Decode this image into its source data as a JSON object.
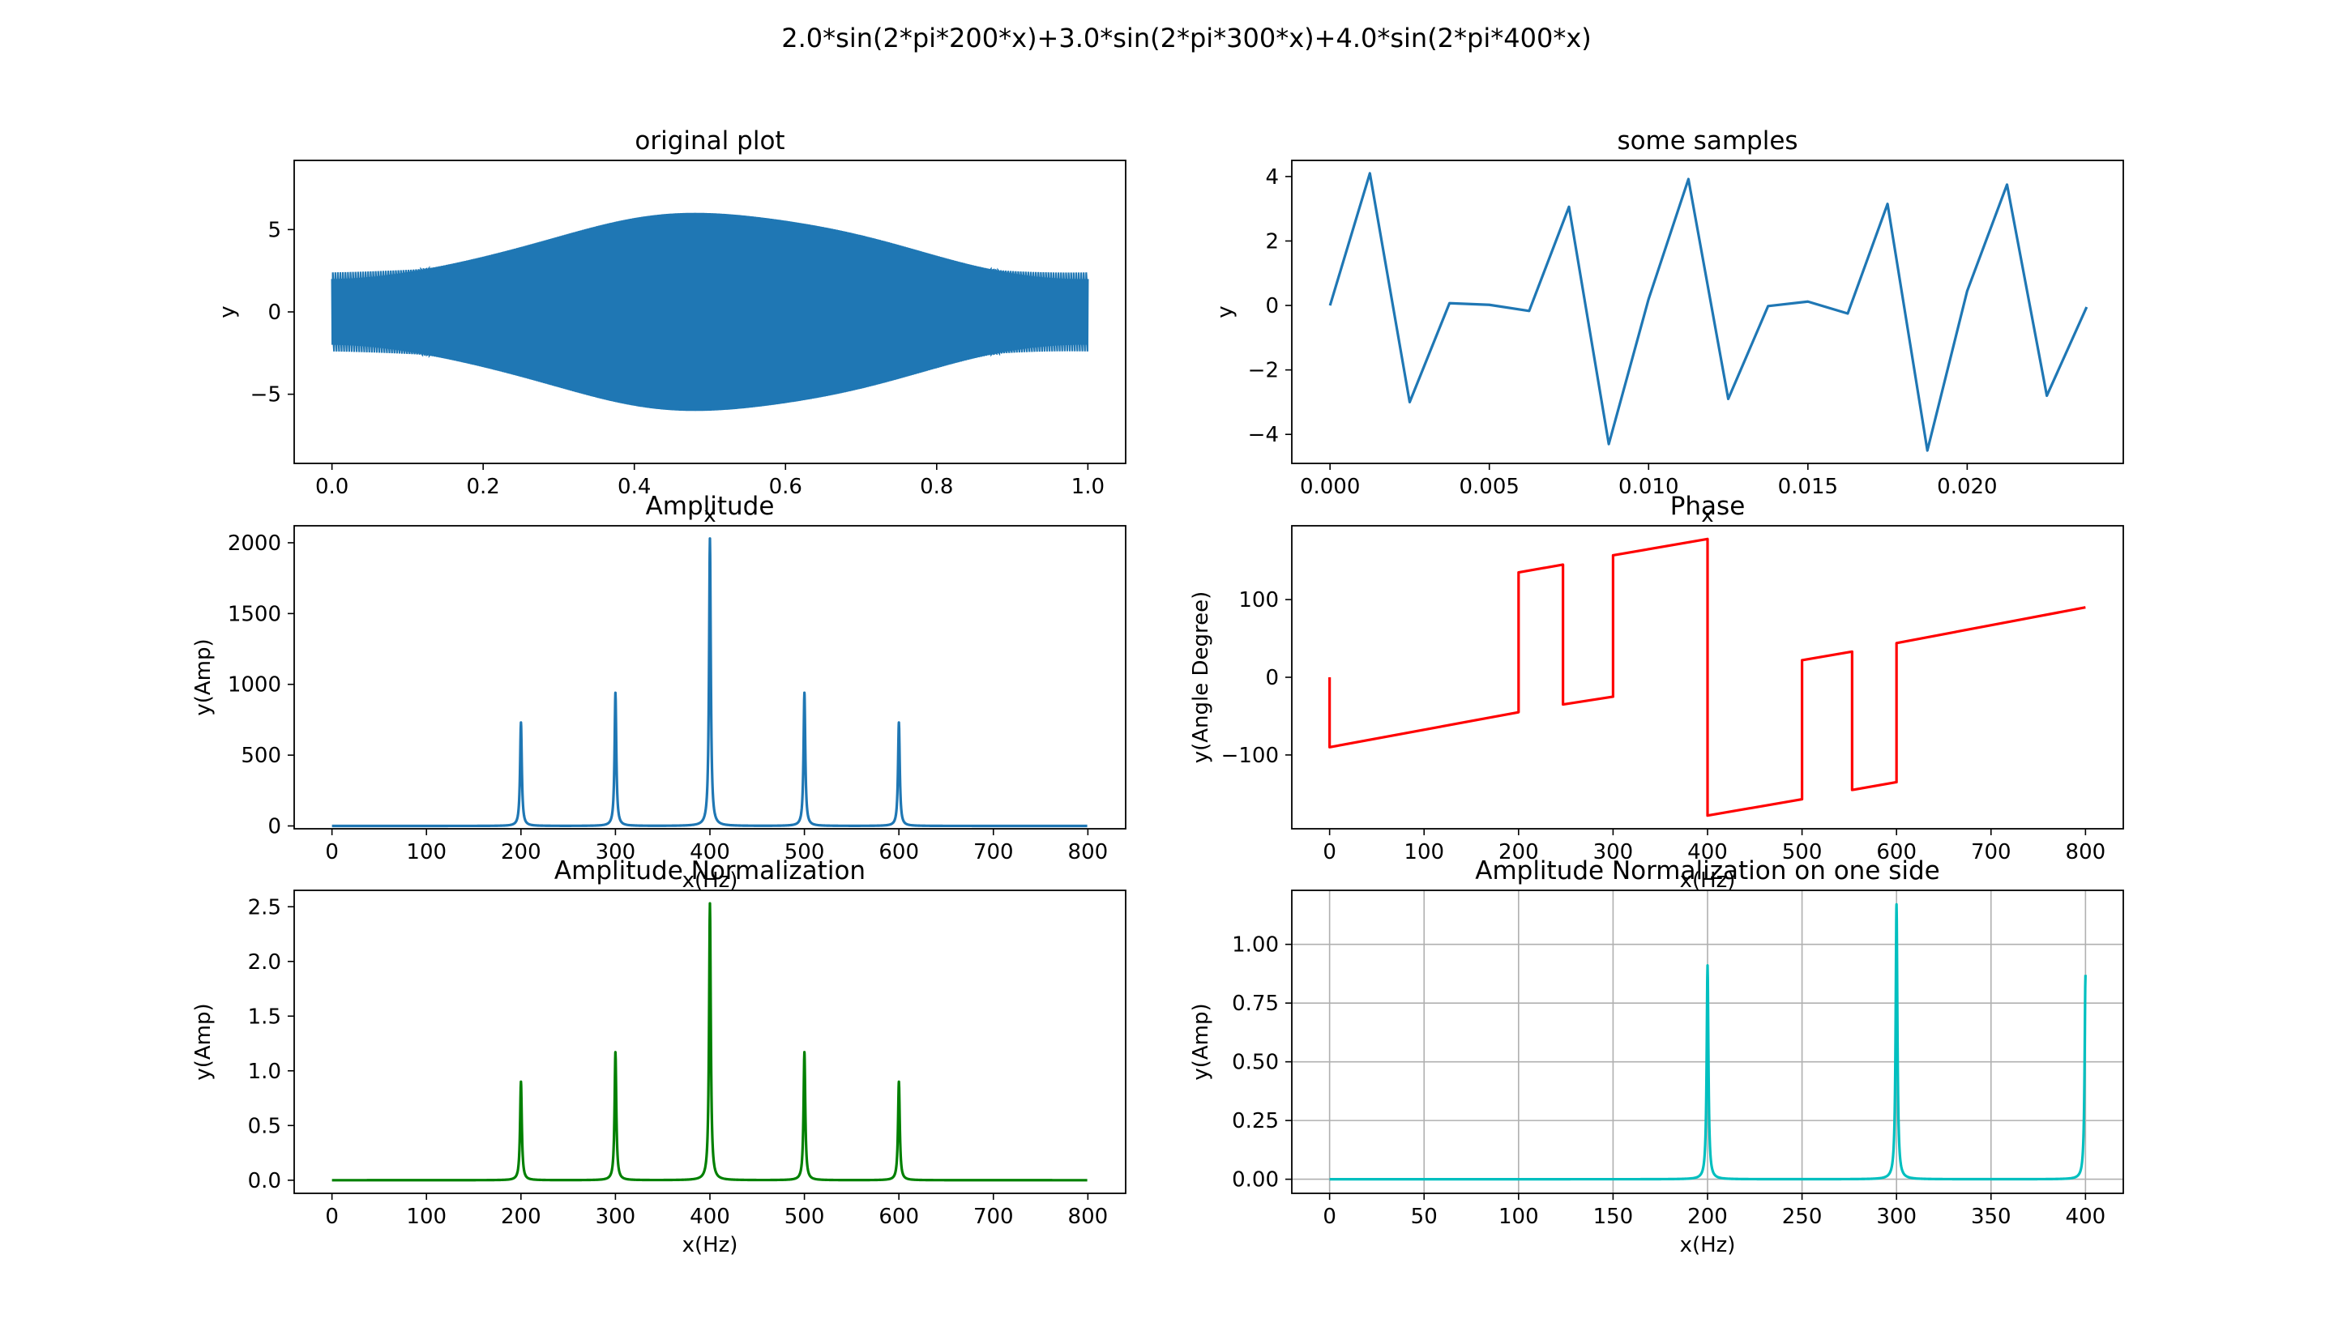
{
  "figure": {
    "suptitle": "2.0*sin(2*pi*200*x)+3.0*sin(2*pi*300*x)+4.0*sin(2*pi*400*x)"
  },
  "chart_data": [
    {
      "id": "original",
      "type": "line",
      "title": "original plot",
      "xlabel": "x",
      "ylabel": "y",
      "xlim": [
        -0.05,
        1.05
      ],
      "ylim": [
        -9.2,
        9.2
      ],
      "xticks": [
        0.0,
        0.2,
        0.4,
        0.6,
        0.8,
        1.0
      ],
      "xticklabels": [
        "0.0",
        "0.2",
        "0.4",
        "0.6",
        "0.8",
        "1.0"
      ],
      "yticks": [
        -5,
        0,
        5
      ],
      "yticklabels": [
        "−5",
        "0",
        "5"
      ],
      "grid": false,
      "color": "#1f77b4",
      "signal": {
        "components": [
          {
            "amplitude": 2.0,
            "frequency": 200
          },
          {
            "amplitude": 3.0,
            "frequency": 300
          },
          {
            "amplitude": 4.0,
            "frequency": 400
          }
        ],
        "sample_rate": 800,
        "x_range": [
          0,
          1
        ]
      }
    },
    {
      "id": "samples",
      "type": "line",
      "title": "some samples",
      "xlabel": "x",
      "ylabel": "y",
      "xlim": [
        -0.0012,
        0.0249
      ],
      "ylim": [
        -4.9,
        4.5
      ],
      "xticks": [
        0.0,
        0.005,
        0.01,
        0.015,
        0.02
      ],
      "xticklabels": [
        "0.000",
        "0.005",
        "0.010",
        "0.015",
        "0.020"
      ],
      "yticks": [
        -4,
        -2,
        0,
        2,
        4
      ],
      "yticklabels": [
        "−4",
        "−2",
        "0",
        "2",
        "4"
      ],
      "grid": false,
      "color": "#1f77b4",
      "x": [
        0.0,
        0.00125,
        0.0025,
        0.00375,
        0.005,
        0.00625,
        0.0075,
        0.00875,
        0.01,
        0.01125,
        0.0125,
        0.01375,
        0.015,
        0.01625,
        0.0175,
        0.01875,
        0.02,
        0.02125,
        0.0225,
        0.02375
      ],
      "y": [
        0.0,
        4.1,
        -3.0,
        0.07,
        0.02,
        -0.17,
        3.06,
        -4.3,
        0.2,
        3.92,
        -2.9,
        -0.02,
        0.12,
        -0.25,
        3.15,
        -4.5,
        0.45,
        3.75,
        -2.8,
        -0.05
      ]
    },
    {
      "id": "amplitude",
      "type": "line",
      "title": "Amplitude",
      "xlabel": "x(Hz)",
      "ylabel": "y(Amp)",
      "xlim": [
        -40,
        840
      ],
      "ylim": [
        -20,
        2120
      ],
      "xticks": [
        0,
        100,
        200,
        300,
        400,
        500,
        600,
        700,
        800
      ],
      "xticklabels": [
        "0",
        "100",
        "200",
        "300",
        "400",
        "500",
        "600",
        "700",
        "800"
      ],
      "yticks": [
        0,
        500,
        1000,
        1500,
        2000
      ],
      "yticklabels": [
        "0",
        "500",
        "1000",
        "1500",
        "2000"
      ],
      "grid": false,
      "color": "#1f77b4",
      "baseline": 0,
      "peaks": [
        {
          "x": 200,
          "y": 730
        },
        {
          "x": 300,
          "y": 940
        },
        {
          "x": 400,
          "y": 2030
        },
        {
          "x": 500,
          "y": 940
        },
        {
          "x": 600,
          "y": 730
        }
      ]
    },
    {
      "id": "phase",
      "type": "line",
      "title": "Phase",
      "xlabel": "x(Hz)",
      "ylabel": "y(Angle Degree)",
      "xlim": [
        -40,
        840
      ],
      "ylim": [
        -195,
        195
      ],
      "xticks": [
        0,
        100,
        200,
        300,
        400,
        500,
        600,
        700,
        800
      ],
      "xticklabels": [
        "0",
        "100",
        "200",
        "300",
        "400",
        "500",
        "600",
        "700",
        "800"
      ],
      "yticks": [
        -100,
        0,
        100
      ],
      "yticklabels": [
        "−100",
        "0",
        "100"
      ],
      "grid": false,
      "color": "#ff0000",
      "x": [
        0,
        0,
        200,
        200,
        247,
        247,
        300,
        300,
        400,
        400,
        500,
        500,
        553,
        553,
        600,
        600,
        800
      ],
      "y": [
        0,
        -90,
        -45,
        135,
        145,
        -35,
        -25,
        157,
        178,
        -178,
        -157,
        22,
        33,
        -145,
        -135,
        44,
        90
      ]
    },
    {
      "id": "amp_norm",
      "type": "line",
      "title": "Amplitude Normalization",
      "xlabel": "x(Hz)",
      "ylabel": "y(Amp)",
      "xlim": [
        -40,
        840
      ],
      "ylim": [
        -0.12,
        2.65
      ],
      "xticks": [
        0,
        100,
        200,
        300,
        400,
        500,
        600,
        700,
        800
      ],
      "xticklabels": [
        "0",
        "100",
        "200",
        "300",
        "400",
        "500",
        "600",
        "700",
        "800"
      ],
      "yticks": [
        0.0,
        0.5,
        1.0,
        1.5,
        2.0,
        2.5
      ],
      "yticklabels": [
        "0.0",
        "0.5",
        "1.0",
        "1.5",
        "2.0",
        "2.5"
      ],
      "grid": false,
      "color": "#008000",
      "baseline": 0,
      "peaks": [
        {
          "x": 200,
          "y": 0.9
        },
        {
          "x": 300,
          "y": 1.17
        },
        {
          "x": 400,
          "y": 2.53
        },
        {
          "x": 500,
          "y": 1.17
        },
        {
          "x": 600,
          "y": 0.9
        }
      ]
    },
    {
      "id": "amp_norm_one_side",
      "type": "line",
      "title": "Amplitude Normalization on one side",
      "xlabel": "x(Hz)",
      "ylabel": "y(Amp)",
      "xlim": [
        -20,
        420
      ],
      "ylim": [
        -0.06,
        1.23
      ],
      "xticks": [
        0,
        50,
        100,
        150,
        200,
        250,
        300,
        350,
        400
      ],
      "xticklabels": [
        "0",
        "50",
        "100",
        "150",
        "200",
        "250",
        "300",
        "350",
        "400"
      ],
      "yticks": [
        0.0,
        0.25,
        0.5,
        0.75,
        1.0
      ],
      "yticklabels": [
        "0.00",
        "0.25",
        "0.50",
        "0.75",
        "1.00"
      ],
      "grid": true,
      "color": "#00bfbf",
      "baseline": 0,
      "peaks": [
        {
          "x": 200,
          "y": 0.91
        },
        {
          "x": 300,
          "y": 1.17
        },
        {
          "x": 400,
          "y": 0.87
        }
      ]
    }
  ]
}
